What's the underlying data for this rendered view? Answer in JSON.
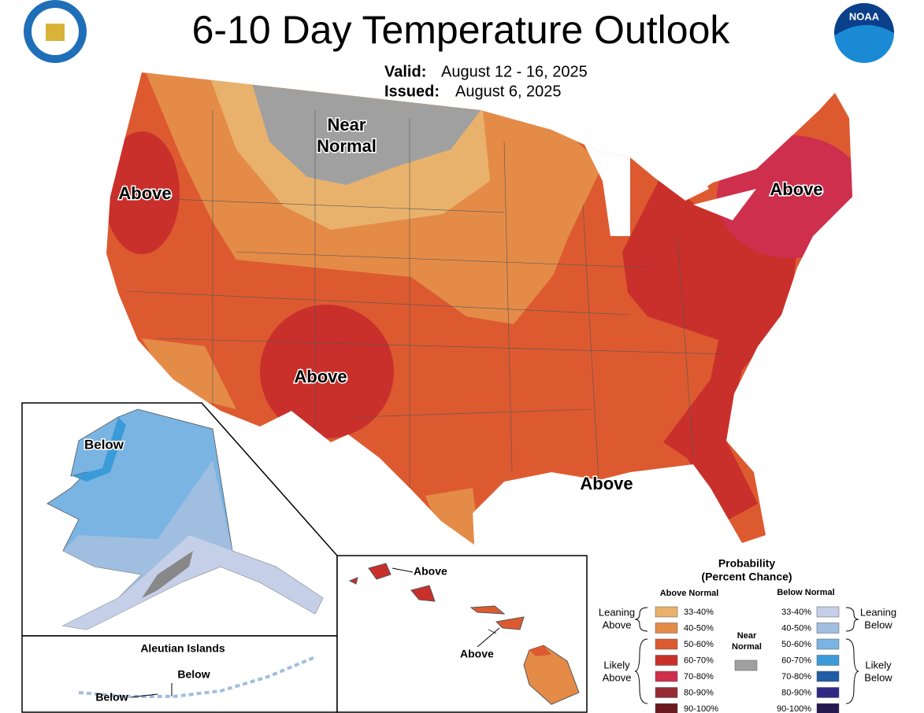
{
  "header": {
    "title": "6-10 Day Temperature Outlook",
    "valid_label": "Valid:",
    "valid": "August 12 - 16, 2025",
    "issued_label": "Issued:",
    "issued": "August 6, 2025",
    "logo_text": "NOAA"
  },
  "contiguous_us": {
    "near_normal": [
      "Near",
      "Normal"
    ],
    "labels": [
      "Above",
      "Above",
      "Above",
      "Above"
    ]
  },
  "alaska": {
    "label": "Below"
  },
  "aleutians": {
    "title": "Aleutian Islands",
    "labels": [
      "Below",
      "Below"
    ]
  },
  "hawaii": {
    "labels": [
      "Above",
      "Above"
    ]
  },
  "legend": {
    "title": [
      "Probability",
      "(Percent Chance)"
    ],
    "above_header": "Above Normal",
    "below_header": "Below Normal",
    "above": [
      {
        "range": "33-40%",
        "color": "#e9b26c"
      },
      {
        "range": "40-50%",
        "color": "#e48b48"
      },
      {
        "range": "50-60%",
        "color": "#dd5a30"
      },
      {
        "range": "60-70%",
        "color": "#c9302b"
      },
      {
        "range": "70-80%",
        "color": "#cd2f4d"
      },
      {
        "range": "80-90%",
        "color": "#962b35"
      },
      {
        "range": "90-100%",
        "color": "#6a1a1e"
      }
    ],
    "below": [
      {
        "range": "33-40%",
        "color": "#c5d0e8"
      },
      {
        "range": "40-50%",
        "color": "#a0bee0"
      },
      {
        "range": "50-60%",
        "color": "#7ab4e3"
      },
      {
        "range": "60-70%",
        "color": "#3b9bd9"
      },
      {
        "range": "70-80%",
        "color": "#1f5ea6"
      },
      {
        "range": "80-90%",
        "color": "#2f2a85"
      },
      {
        "range": "90-100%",
        "color": "#241a50"
      }
    ],
    "near": {
      "label": [
        "Near",
        "Normal"
      ],
      "color": "#a0a0a0"
    },
    "leaning_above": [
      "Leaning",
      "Above"
    ],
    "likely_above": [
      "Likely",
      "Above"
    ],
    "leaning_below": [
      "Leaning",
      "Below"
    ],
    "likely_below": [
      "Likely",
      "Below"
    ]
  }
}
